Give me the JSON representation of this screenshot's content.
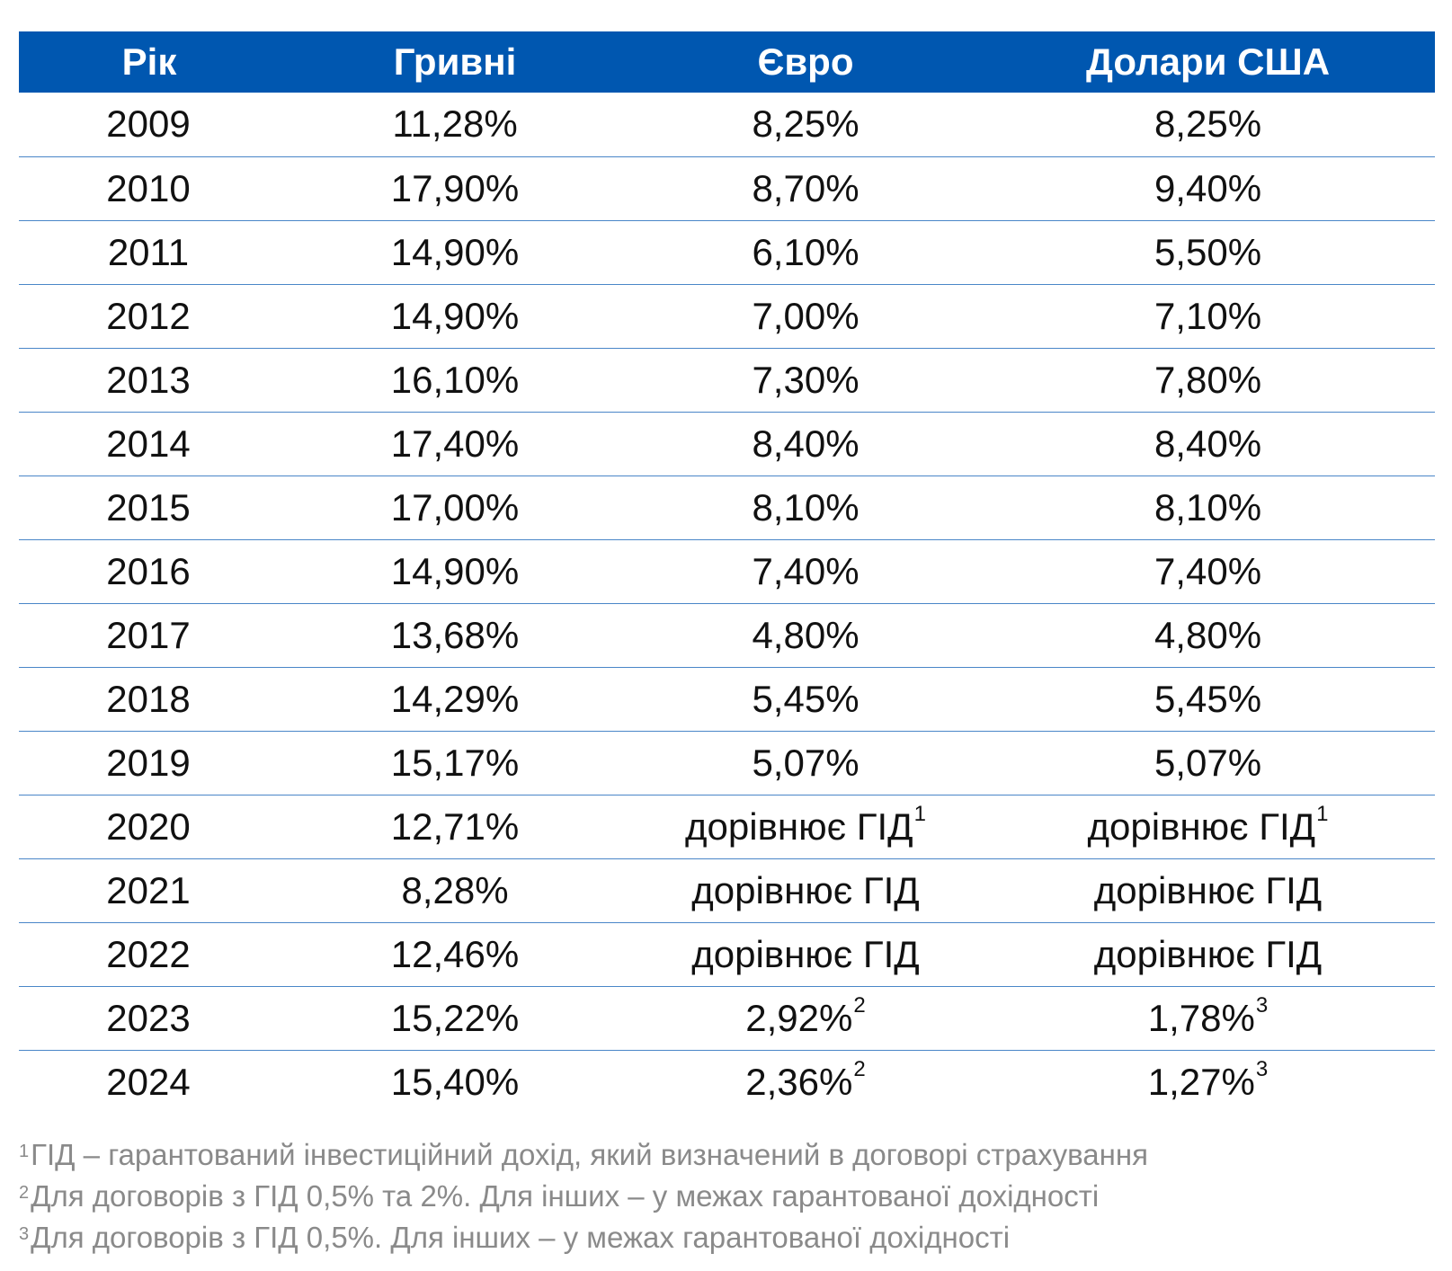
{
  "table": {
    "headers": [
      "Рік",
      "Гривні",
      "Євро",
      "Долари США"
    ],
    "rows": [
      {
        "year": "2009",
        "uah": "11,28%",
        "eur": "8,25%",
        "eur_fn": "",
        "usd": "8,25%",
        "usd_fn": ""
      },
      {
        "year": "2010",
        "uah": "17,90%",
        "eur": "8,70%",
        "eur_fn": "",
        "usd": "9,40%",
        "usd_fn": ""
      },
      {
        "year": "2011",
        "uah": "14,90%",
        "eur": "6,10%",
        "eur_fn": "",
        "usd": "5,50%",
        "usd_fn": ""
      },
      {
        "year": "2012",
        "uah": "14,90%",
        "eur": "7,00%",
        "eur_fn": "",
        "usd": "7,10%",
        "usd_fn": ""
      },
      {
        "year": "2013",
        "uah": "16,10%",
        "eur": "7,30%",
        "eur_fn": "",
        "usd": "7,80%",
        "usd_fn": ""
      },
      {
        "year": "2014",
        "uah": "17,40%",
        "eur": "8,40%",
        "eur_fn": "",
        "usd": "8,40%",
        "usd_fn": ""
      },
      {
        "year": "2015",
        "uah": "17,00%",
        "eur": "8,10%",
        "eur_fn": "",
        "usd": "8,10%",
        "usd_fn": ""
      },
      {
        "year": "2016",
        "uah": "14,90%",
        "eur": "7,40%",
        "eur_fn": "",
        "usd": "7,40%",
        "usd_fn": ""
      },
      {
        "year": "2017",
        "uah": "13,68%",
        "eur": "4,80%",
        "eur_fn": "",
        "usd": "4,80%",
        "usd_fn": ""
      },
      {
        "year": "2018",
        "uah": "14,29%",
        "eur": "5,45%",
        "eur_fn": "",
        "usd": "5,45%",
        "usd_fn": ""
      },
      {
        "year": "2019",
        "uah": "15,17%",
        "eur": "5,07%",
        "eur_fn": "",
        "usd": "5,07%",
        "usd_fn": ""
      },
      {
        "year": "2020",
        "uah": "12,71%",
        "eur": "дорівнює ГІД",
        "eur_fn": "1",
        "usd": "дорівнює ГІД",
        "usd_fn": "1"
      },
      {
        "year": "2021",
        "uah": "8,28%",
        "eur": "дорівнює ГІД",
        "eur_fn": "",
        "usd": "дорівнює ГІД",
        "usd_fn": ""
      },
      {
        "year": "2022",
        "uah": "12,46%",
        "eur": "дорівнює ГІД",
        "eur_fn": "",
        "usd": "дорівнює ГІД",
        "usd_fn": ""
      },
      {
        "year": "2023",
        "uah": "15,22%",
        "eur": "2,92%",
        "eur_fn": "2",
        "usd": "1,78%",
        "usd_fn": "3"
      },
      {
        "year": "2024",
        "uah": "15,40%",
        "eur": "2,36%",
        "eur_fn": "2",
        "usd": "1,27%",
        "usd_fn": "3"
      }
    ]
  },
  "footnotes": [
    {
      "mark": "1",
      "text": "ГІД – гарантований інвестиційний дохід, який визначений в договорі страхування"
    },
    {
      "mark": "2",
      "text": "Для договорів з ГІД 0,5% та 2%. Для інших – у межах гарантованої дохідності"
    },
    {
      "mark": "3",
      "text": "Для договорів з ГІД 0,5%. Для інших – у межах гарантованої дохідності"
    }
  ],
  "colors": {
    "header_bg": "#0057b0",
    "header_text": "#ffffff",
    "row_divider": "#4a86c8",
    "footnote_text": "#8a8a8a"
  }
}
